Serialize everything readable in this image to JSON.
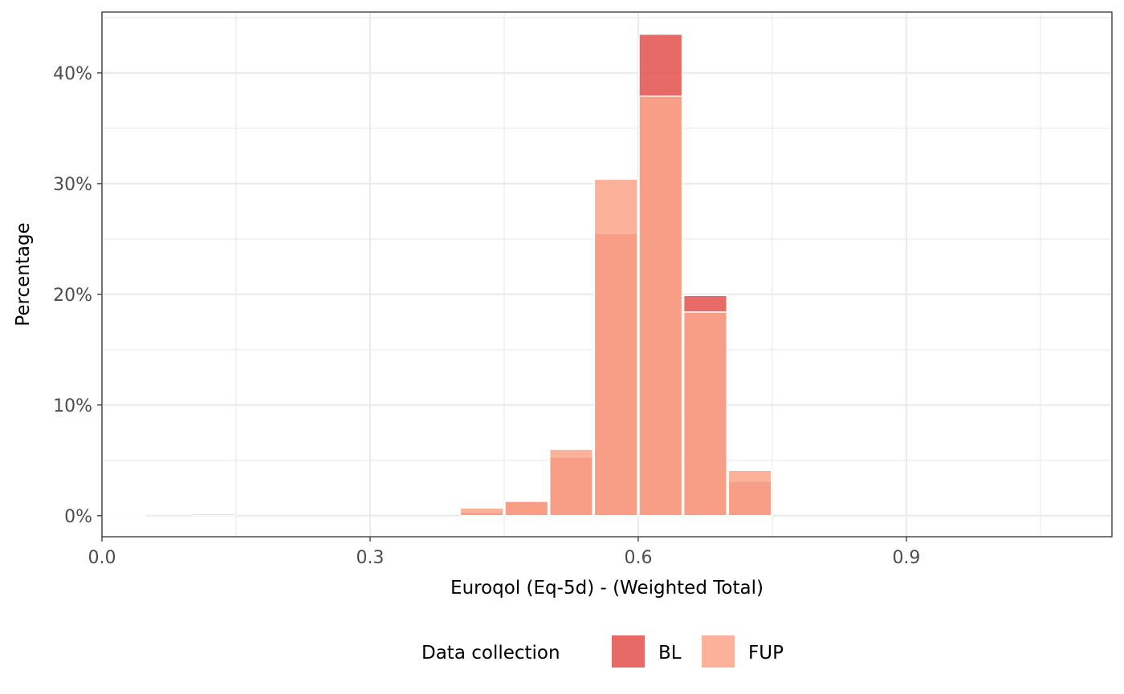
{
  "chart_data": {
    "type": "bar",
    "xlabel": "Euroqol (Eq-5d) - (Weighted Total)",
    "ylabel": "Percentage",
    "x_ticks": [
      0.0,
      0.3,
      0.6,
      0.9
    ],
    "x_tick_labels": [
      "0.0",
      "0.3",
      "0.6",
      "0.9"
    ],
    "xlim": [
      0.0,
      1.13
    ],
    "y_ticks": [
      0,
      10,
      20,
      30,
      40
    ],
    "y_tick_labels": [
      "0%",
      "10%",
      "20%",
      "30%",
      "40%"
    ],
    "ylim": [
      -1.9,
      45.5
    ],
    "grid": true,
    "bin_width": 0.05,
    "legend": {
      "title": "Data collection",
      "position": "bottom",
      "entries": [
        "BL",
        "FUP"
      ]
    },
    "series": [
      {
        "name": "BL",
        "color": "#e35450",
        "x_start": [
          0.0,
          0.05,
          0.1,
          0.15,
          0.2,
          0.25,
          0.3,
          0.35,
          0.4,
          0.45,
          0.5,
          0.55,
          0.6,
          0.65,
          0.7,
          0.75,
          0.8,
          0.85,
          0.9,
          0.95
        ],
        "values": [
          0.05,
          0.0,
          0.0,
          0.0,
          0.0,
          0.0,
          0.0,
          0.0,
          0.3,
          1.4,
          5.3,
          25.5,
          43.5,
          19.9,
          3.1,
          0,
          0,
          0,
          0,
          0
        ]
      },
      {
        "name": "FUP",
        "color": "#fca58b",
        "x_start": [
          0.05,
          0.1,
          0.15,
          0.2,
          0.25,
          0.3,
          0.35,
          0.4,
          0.45,
          0.5,
          0.55,
          0.6,
          0.65,
          0.7,
          0.75,
          0.8,
          0.85,
          0.9,
          0.95,
          1.0
        ],
        "values": [
          0.0,
          0.15,
          0.0,
          0.0,
          0.0,
          0.0,
          0.0,
          0.7,
          1.3,
          6.0,
          30.4,
          37.9,
          18.4,
          4.1,
          0,
          0,
          0,
          0,
          0,
          0
        ]
      }
    ]
  }
}
